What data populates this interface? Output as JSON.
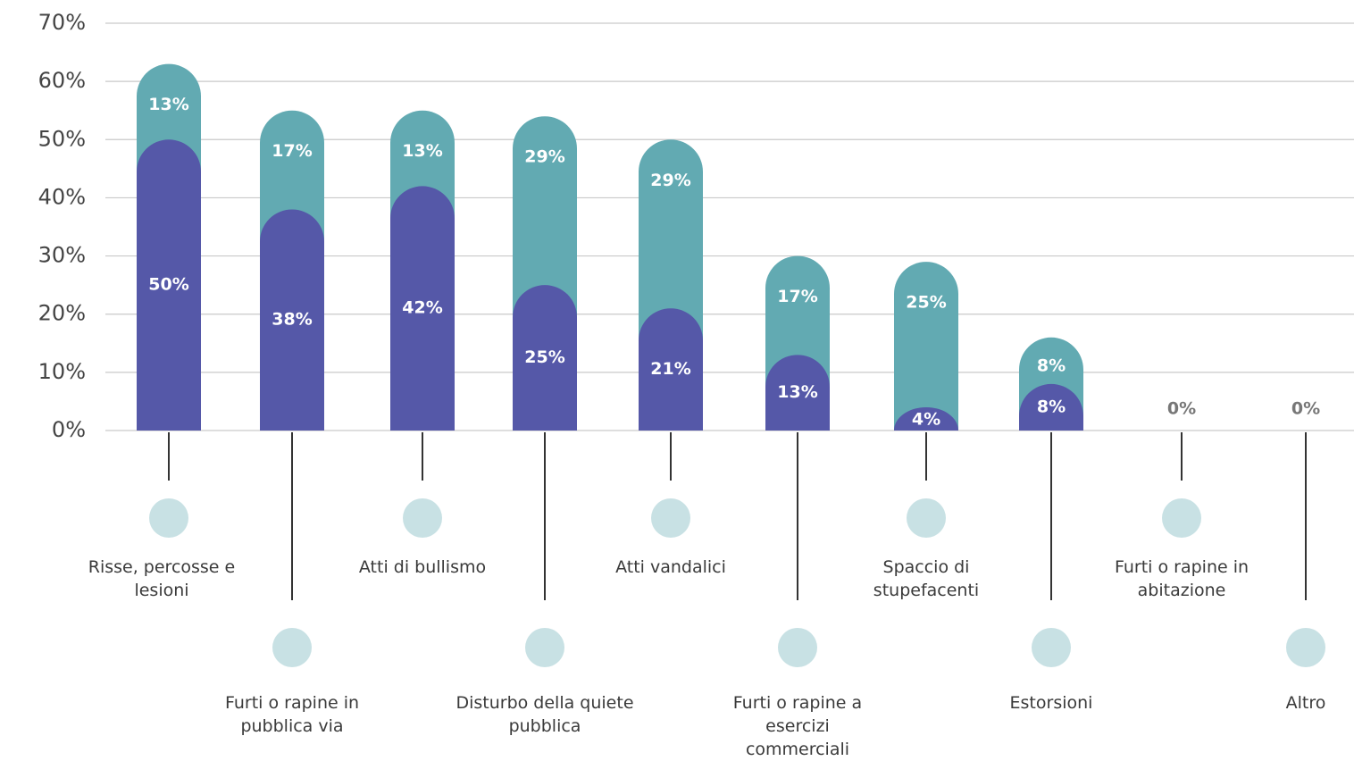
{
  "chart_data": {
    "type": "stacked-bar",
    "categories": [
      "Risse, percosse e lesioni",
      "Furti o rapine in pubblica via",
      "Atti di bullismo",
      "Disturbo della quiete pubblica",
      "Atti vandalici",
      "Furti o rapine a esercizi commerciali",
      "Spaccio di stupefacenti",
      "Estorsioni",
      "Furti o rapine in abitazione",
      "Altro"
    ],
    "series": [
      {
        "color": "#5558a8",
        "values": [
          50,
          38,
          42,
          25,
          21,
          13,
          4,
          8,
          0,
          0
        ],
        "value_labels": [
          "50%",
          "38%",
          "42%",
          "25%",
          "21%",
          "13%",
          "4%",
          "8%",
          null,
          null
        ]
      },
      {
        "color": "#62aab2",
        "values": [
          13,
          17,
          13,
          29,
          29,
          17,
          25,
          8,
          0,
          0
        ],
        "value_labels": [
          "13%",
          "17%",
          "13%",
          "29%",
          "29%",
          "17%",
          "25%",
          "8%",
          "0%",
          "0%"
        ]
      }
    ],
    "ylim": [
      0,
      70
    ],
    "yticks": [
      {
        "value": 0,
        "label": "0%"
      },
      {
        "value": 10,
        "label": "10%"
      },
      {
        "value": 20,
        "label": "20%"
      },
      {
        "value": 30,
        "label": "30%"
      },
      {
        "value": 40,
        "label": "40%"
      },
      {
        "value": 50,
        "label": "50%"
      },
      {
        "value": 60,
        "label": "60%"
      },
      {
        "value": 70,
        "label": "70%"
      }
    ],
    "grid": true
  }
}
